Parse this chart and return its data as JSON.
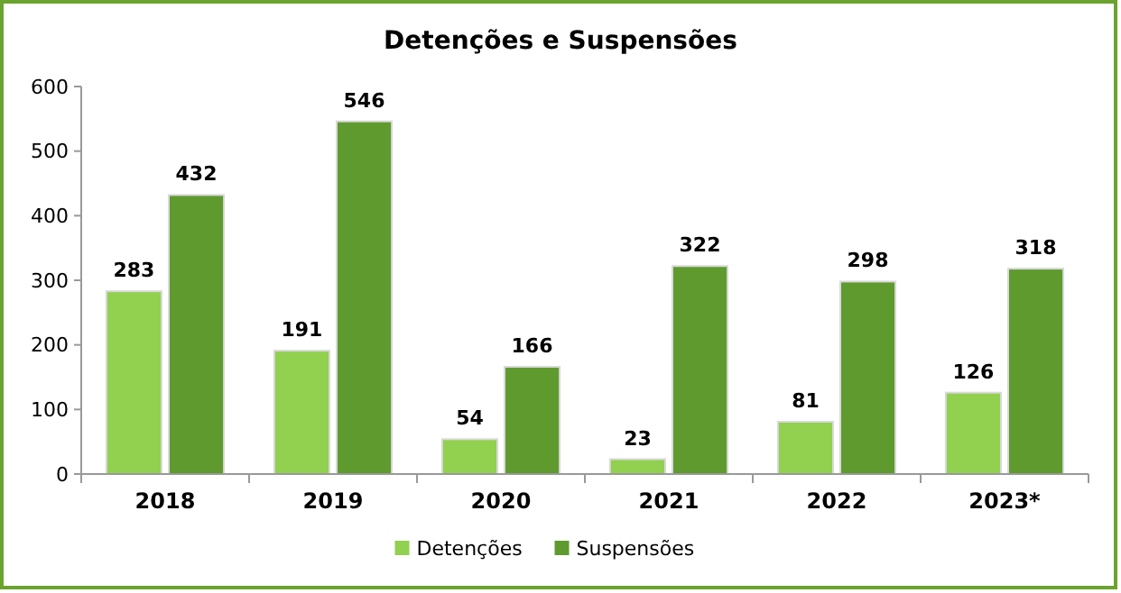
{
  "chart_data": {
    "type": "bar",
    "title": "Detenções e Suspensões",
    "categories": [
      "2018",
      "2019",
      "2020",
      "2021",
      "2022",
      "2023*"
    ],
    "series": [
      {
        "name": "Detenções",
        "color": "#92d050",
        "values": [
          283,
          191,
          54,
          23,
          81,
          126
        ]
      },
      {
        "name": "Suspensões",
        "color": "#5f9a2e",
        "values": [
          432,
          546,
          166,
          322,
          298,
          318
        ]
      }
    ],
    "ylim": [
      0,
      600
    ],
    "yticks": [
      0,
      100,
      200,
      300,
      400,
      500,
      600
    ],
    "grid": false,
    "legend": "bottom",
    "data_labels": true
  }
}
